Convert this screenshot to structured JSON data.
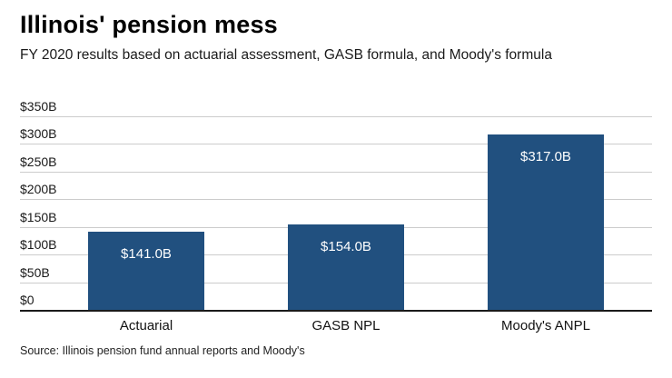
{
  "header": {
    "title": "Illinois' pension mess",
    "subtitle": "FY 2020 results based on actuarial assessment, GASB formula, and Moody's formula"
  },
  "chart_data": {
    "type": "bar",
    "title": "Illinois' pension mess",
    "subtitle": "FY 2020 results based on actuarial assessment, GASB formula, and Moody's formula",
    "categories": [
      "Actuarial",
      "GASB NPL",
      "Moody's ANPL"
    ],
    "values": [
      141.0,
      154.0,
      317.0
    ],
    "value_labels": [
      "$141.0B",
      "$154.0B",
      "$317.0B"
    ],
    "xlabel": "",
    "ylabel": "",
    "ylim": [
      0,
      350
    ],
    "ytick_step": 50,
    "ytick_values": [
      0,
      50,
      100,
      150,
      200,
      250,
      300,
      350
    ],
    "ytick_labels": [
      "$0",
      "$50B",
      "$100B",
      "$150B",
      "$200B",
      "$250B",
      "$300B",
      "$350B"
    ],
    "grid": true,
    "legend": "none",
    "source": "Source: Illinois pension fund annual reports and Moody's"
  },
  "colors": {
    "bar": "#21507f",
    "grid": "#cccccc",
    "axis": "#1a1a1a",
    "value_label": "#ffffff"
  },
  "footer": {
    "source": "Source: Illinois pension fund annual reports and Moody's"
  }
}
